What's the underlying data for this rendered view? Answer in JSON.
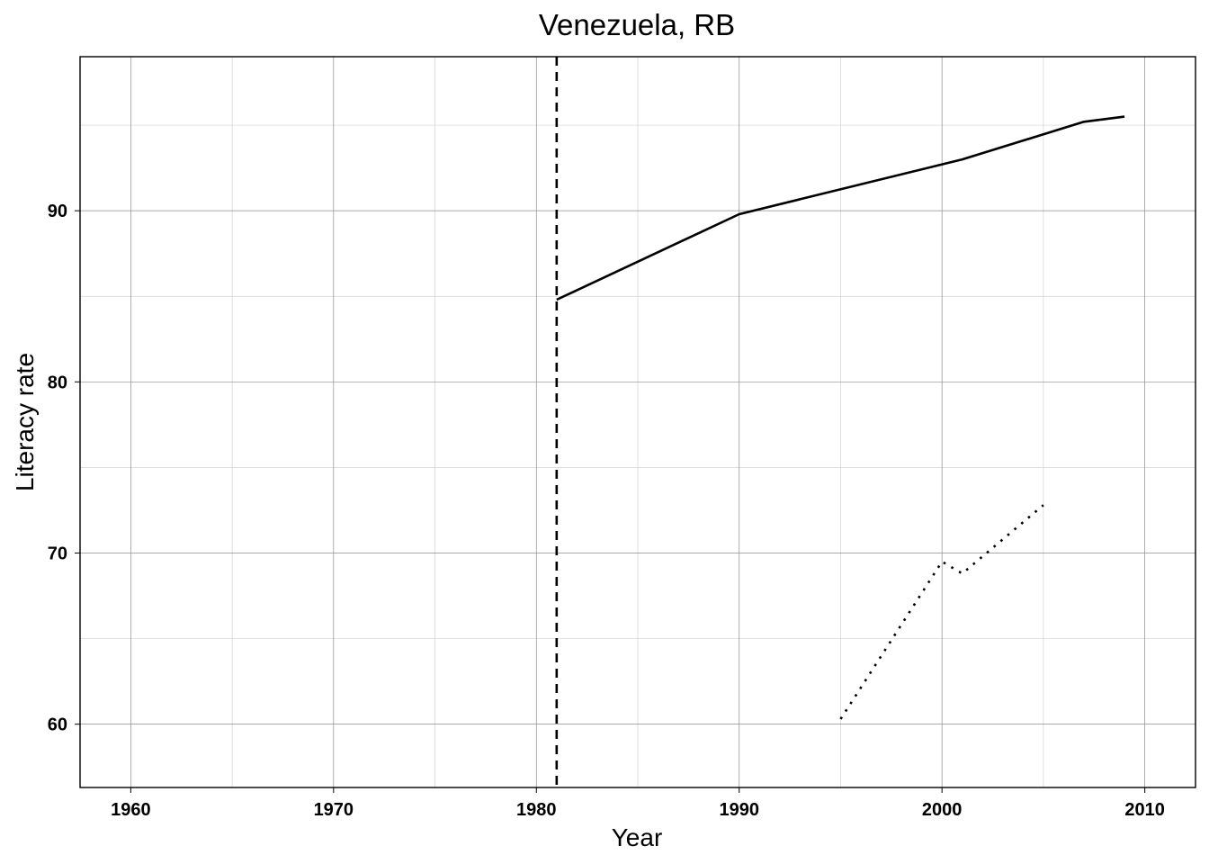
{
  "chart_data": {
    "type": "line",
    "title": "Venezuela, RB",
    "xlabel": "Year",
    "ylabel": "Literacy rate",
    "xlim": [
      1957.5,
      2012.5
    ],
    "ylim": [
      56.3,
      99.0
    ],
    "x_ticks": [
      1960,
      1970,
      1980,
      1990,
      2000,
      2010
    ],
    "y_ticks": [
      60,
      70,
      80,
      90
    ],
    "x_ticks_minor": [
      1965,
      1975,
      1985,
      1995,
      2005
    ],
    "y_ticks_minor": [
      65,
      75,
      85,
      95
    ],
    "grid": true,
    "legend": "none",
    "vline": {
      "x": 1981,
      "style": "dashed"
    },
    "series": [
      {
        "style": "solid",
        "x": [
          1981,
          1990,
          2001,
          2007,
          2009
        ],
        "y": [
          84.8,
          89.8,
          93.0,
          95.2,
          95.5
        ]
      },
      {
        "style": "dotted",
        "x": [
          1995,
          2000,
          2001,
          2005
        ],
        "y": [
          60.3,
          69.5,
          68.8,
          72.8
        ]
      }
    ]
  }
}
